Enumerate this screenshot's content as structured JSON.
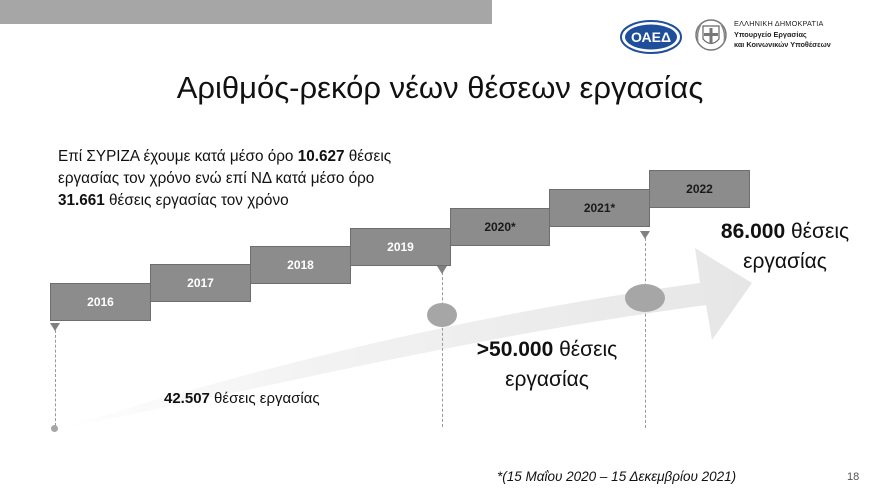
{
  "header": {
    "oaed_logo_text": "ΟΑΕΔ",
    "ministry_line1": "ΕΛΛΗΝΙΚΗ ΔΗΜΟΚΡΑΤΙΑ",
    "ministry_line2": "Υπουργείο Εργασίας",
    "ministry_line3": "και Κοινωνικών Υποθέσεων"
  },
  "title": "Αριθμός-ρεκόρ νέων θέσεων εργασίας",
  "intro": {
    "part1": "Επί ΣΥΡΙΖΑ έχουμε κατά μέσο όρο ",
    "value1": "10.627",
    "part2": " θέσεις εργασίας τον χρόνο ενώ επί ΝΔ κατά μέσο όρο ",
    "value2": "31.661",
    "part3": " θέσεις εργασίας τον χρόνο"
  },
  "steps": [
    {
      "label": "2016"
    },
    {
      "label": "2017"
    },
    {
      "label": "2018"
    },
    {
      "label": "2019"
    },
    {
      "label": "2020*"
    },
    {
      "label": "2021*"
    },
    {
      "label": "2022"
    }
  ],
  "callouts": {
    "big_right_value": "86.000",
    "big_right_text": " θέσεις",
    "big_right_line2": "εργασίας",
    "big_mid_value": ">50.000",
    "big_mid_text": " θέσεις",
    "big_mid_line2": "εργασίας",
    "small_value": "42.507",
    "small_text": " θέσεις εργασίας"
  },
  "footnote": "*(15 Μαΐου 2020 – 15 Δεκεμβρίου 2021)",
  "page_number": "18",
  "colors": {
    "topbar": "#a6a6a6",
    "step_fill": "#8c8c8c",
    "arrow_fill": "#ececec",
    "logo_blue": "#1f4e9a"
  }
}
